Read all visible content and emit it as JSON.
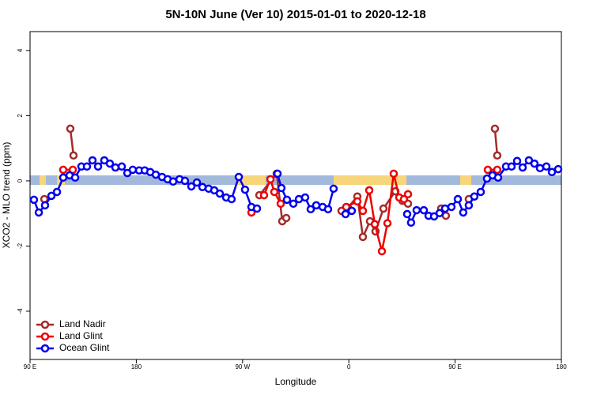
{
  "chart_data": {
    "type": "line",
    "title": "5N-10N June (Ver 10)   2015-01-01 to 2020-12-18",
    "x_label": "Longitude",
    "y_label": "XCO2 - MLO trend (ppm)",
    "xlim": [
      90,
      540
    ],
    "ylim": [
      -5.48,
      4.58
    ],
    "xticks": [
      {
        "value": 90,
        "label": "90 E"
      },
      180,
      {
        "value": 270,
        "label": "90 W"
      },
      {
        "value": 360,
        "label": "0"
      },
      {
        "value": 450,
        "label": "90 E"
      },
      {
        "value": 540,
        "label": "180"
      }
    ],
    "yticks": [
      -4,
      -2,
      0,
      2,
      4
    ],
    "legend": "bottom-left",
    "series": [
      {
        "name": "Land Nadir",
        "color": "#a52a2a",
        "x": [
          102.1,
          null,
          124.1,
          126.8,
          null,
          284.2,
          298.9,
          303.6,
          307.0,
          null,
          353.8,
          359.2,
          367.2,
          371.9,
          377.9,
          382.6,
          389.3,
          399.4,
          405.4,
          410.1,
          null,
          438.2,
          442.2,
          null,
          461.6,
          null,
          483.7,
          485.7
        ],
        "values": [
          -0.56,
          null,
          1.6,
          0.78,
          null,
          -0.44,
          0.22,
          -1.24,
          -1.14,
          null,
          -0.92,
          -0.82,
          -0.48,
          -1.72,
          -1.24,
          -1.55,
          -0.85,
          -0.32,
          -0.61,
          -0.7,
          null,
          -0.85,
          -1.07,
          null,
          -0.56,
          null,
          1.6,
          0.78
        ]
      },
      {
        "name": "Land Glint",
        "color": "#ee0000",
        "x": [
          118.1,
          126.2,
          null,
          277.5,
          null,
          288.2,
          293.6,
          296.9,
          302.3,
          null,
          357.8,
          367.2,
          371.9,
          377.3,
          382.0,
          388.0,
          392.7,
          398.0,
          402.7,
          406.7,
          410.1,
          null,
          477.7,
          485.7
        ],
        "values": [
          0.34,
          0.34,
          null,
          -0.97,
          null,
          -0.44,
          0.05,
          -0.34,
          -0.7,
          null,
          -0.8,
          -0.63,
          -0.92,
          -0.29,
          -1.33,
          -2.16,
          -1.3,
          0.22,
          -0.51,
          -0.56,
          -0.41,
          null,
          0.34,
          0.34
        ]
      },
      {
        "name": "Ocean Glint",
        "color": "#0000ee",
        "x": [
          93.3,
          97.4,
          102.7,
          108.1,
          112.8,
          118.1,
          123.5,
          128.2,
          133.5,
          138.2,
          142.9,
          147.6,
          152.9,
          157.6,
          162.3,
          167.7,
          172.4,
          177.0,
          182.4,
          187.1,
          191.8,
          196.5,
          201.8,
          206.5,
          211.2,
          216.6,
          221.2,
          226.6,
          231.3,
          236.0,
          241.3,
          246.0,
          250.7,
          256.1,
          260.7,
          266.8,
          272.1,
          277.5,
          282.2,
          null,
          299.6,
          302.9,
          307.6,
          313.0,
          317.7,
          323.0,
          327.7,
          332.4,
          337.8,
          342.4,
          347.1,
          null,
          357.2,
          362.5,
          null,
          409.4,
          412.7,
          417.4,
          423.5,
          427.5,
          432.2,
          436.9,
          441.5,
          446.9,
          452.3,
          456.9,
          461.6,
          466.3,
          471.7,
          477.0,
          481.7,
          486.4,
          493.1,
          497.8,
          502.5,
          507.2,
          512.5,
          517.2,
          521.9,
          527.3,
          532.0,
          537.3
        ],
        "values": [
          -0.58,
          -0.97,
          -0.75,
          -0.46,
          -0.34,
          0.1,
          0.17,
          0.1,
          0.44,
          0.44,
          0.63,
          0.44,
          0.63,
          0.53,
          0.41,
          0.44,
          0.24,
          0.34,
          0.32,
          0.32,
          0.27,
          0.19,
          0.12,
          0.05,
          -0.02,
          0.05,
          0,
          -0.17,
          -0.05,
          -0.19,
          -0.24,
          -0.29,
          -0.39,
          -0.51,
          -0.56,
          0.12,
          -0.27,
          -0.8,
          -0.85,
          null,
          0.22,
          -0.22,
          -0.58,
          -0.7,
          -0.56,
          -0.51,
          -0.87,
          -0.75,
          -0.8,
          -0.87,
          -0.24,
          null,
          -1.02,
          -0.92,
          null,
          -1.02,
          -1.28,
          -0.9,
          -0.9,
          -1.07,
          -1.09,
          -0.99,
          -0.85,
          -0.8,
          -0.56,
          -0.97,
          -0.75,
          -0.48,
          -0.34,
          0.07,
          0.17,
          0.1,
          0.44,
          0.44,
          0.61,
          0.41,
          0.63,
          0.53,
          0.39,
          0.44,
          0.27,
          0.36
        ]
      }
    ]
  }
}
